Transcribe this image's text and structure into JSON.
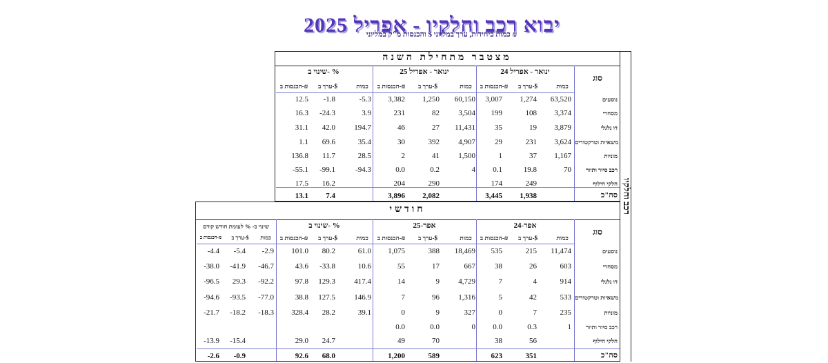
{
  "title": "יבוא רכב וחלקיו - אפריל 2025",
  "subtitle": "כמות ביחידות, ערך במליוני $ והכנסות מ\"ק במליוני ₪",
  "side_label": "רכב וחלקיו",
  "cumulative": {
    "heading": "מצטבר מתחילת השנה",
    "type_header": "סוג",
    "groups": [
      "ינואר - אפריל 24",
      "ינואר - אפריל 25",
      "שינוי ב- %"
    ],
    "col_headers": [
      "כמות",
      "ערך ב-$",
      "הכנסות ב-₪"
    ],
    "rows": [
      {
        "label": "נוסעים",
        "vals": [
          "63,520",
          "1,274",
          "3,007",
          "60,150",
          "1,250",
          "3,382",
          "-5.3",
          "-1.8",
          "12.5"
        ]
      },
      {
        "label": "מסחרי",
        "vals": [
          "3,374",
          "108",
          "199",
          "3,504",
          "82",
          "231",
          "3.9",
          "-24.3",
          "16.3"
        ]
      },
      {
        "label": "דו גלגלי",
        "vals": [
          "3,879",
          "19",
          "35",
          "11,431",
          "27",
          "46",
          "194.7",
          "42.0",
          "31.1"
        ]
      },
      {
        "label": "משאיות וטרקטורים",
        "vals": [
          "3,624",
          "231",
          "29",
          "4,907",
          "392",
          "30",
          "35.4",
          "69.6",
          "1.1"
        ]
      },
      {
        "label": "מוניות",
        "vals": [
          "1,167",
          "37",
          "1",
          "1,500",
          "41",
          "2",
          "28.5",
          "11.7",
          "136.8"
        ]
      },
      {
        "label": "רכב סיור ותיור",
        "vals": [
          "70",
          "19.8",
          "0.1",
          "4",
          "0.2",
          "0.0",
          "-94.3",
          "-99.1",
          "-55.1"
        ]
      },
      {
        "label": "חלקי חילוף",
        "vals": [
          "",
          "249",
          "174",
          "",
          "290",
          "204",
          "",
          "16.2",
          "17.5"
        ]
      }
    ],
    "total": {
      "label": "סה\"כ",
      "vals": [
        "",
        "1,938",
        "3,445",
        "",
        "2,082",
        "3,896",
        "",
        "7.4",
        "13.1"
      ]
    }
  },
  "monthly": {
    "heading": "חודשי",
    "type_header": "סוג",
    "groups": [
      "אפר-24",
      "אפר-25",
      "שינוי ב- %",
      "שינוי ב- % לעומת חודש קודם"
    ],
    "col_headers": [
      "כמות",
      "ערך ב-$",
      "הכנסות ב-₪"
    ],
    "rows": [
      {
        "label": "נוסעים",
        "vals": [
          "11,474",
          "215",
          "535",
          "18,469",
          "388",
          "1,075",
          "61.0",
          "80.2",
          "101.0",
          "-2.9",
          "-5.4",
          "-4.4"
        ]
      },
      {
        "label": "מסחרי",
        "vals": [
          "603",
          "26",
          "38",
          "667",
          "17",
          "55",
          "10.6",
          "-33.8",
          "43.6",
          "-46.7",
          "-41.9",
          "-38.0"
        ]
      },
      {
        "label": "דו גלגלי",
        "vals": [
          "914",
          "4",
          "7",
          "4,729",
          "9",
          "14",
          "417.4",
          "129.3",
          "97.8",
          "-92.2",
          "29.3",
          "-96.5"
        ]
      },
      {
        "label": "משאיות וטרקטורים",
        "vals": [
          "533",
          "42",
          "5",
          "1,316",
          "96",
          "7",
          "146.9",
          "127.5",
          "38.8",
          "-77.0",
          "-93.5",
          "-94.6"
        ]
      },
      {
        "label": "מוניות",
        "vals": [
          "235",
          "7",
          "0",
          "327",
          "9",
          "0",
          "39.1",
          "28.2",
          "328.4",
          "-18.3",
          "-18.2",
          "-21.7"
        ]
      },
      {
        "label": "רכב סיור ותיור",
        "vals": [
          "1",
          "0.3",
          "0.0",
          "0",
          "0.0",
          "0.0",
          "",
          "",
          "",
          "",
          "",
          ""
        ]
      },
      {
        "label": "חלקי חילוף",
        "vals": [
          "",
          "56",
          "38",
          "",
          "70",
          "49",
          "",
          "24.7",
          "29.0",
          "",
          "-15.4",
          "-13.9"
        ]
      }
    ],
    "total": {
      "label": "סה\"כ",
      "vals": [
        "",
        "351",
        "623",
        "",
        "589",
        "1,200",
        "",
        "68.0",
        "92.6",
        "",
        "-0.9",
        "-2.6"
      ]
    }
  }
}
